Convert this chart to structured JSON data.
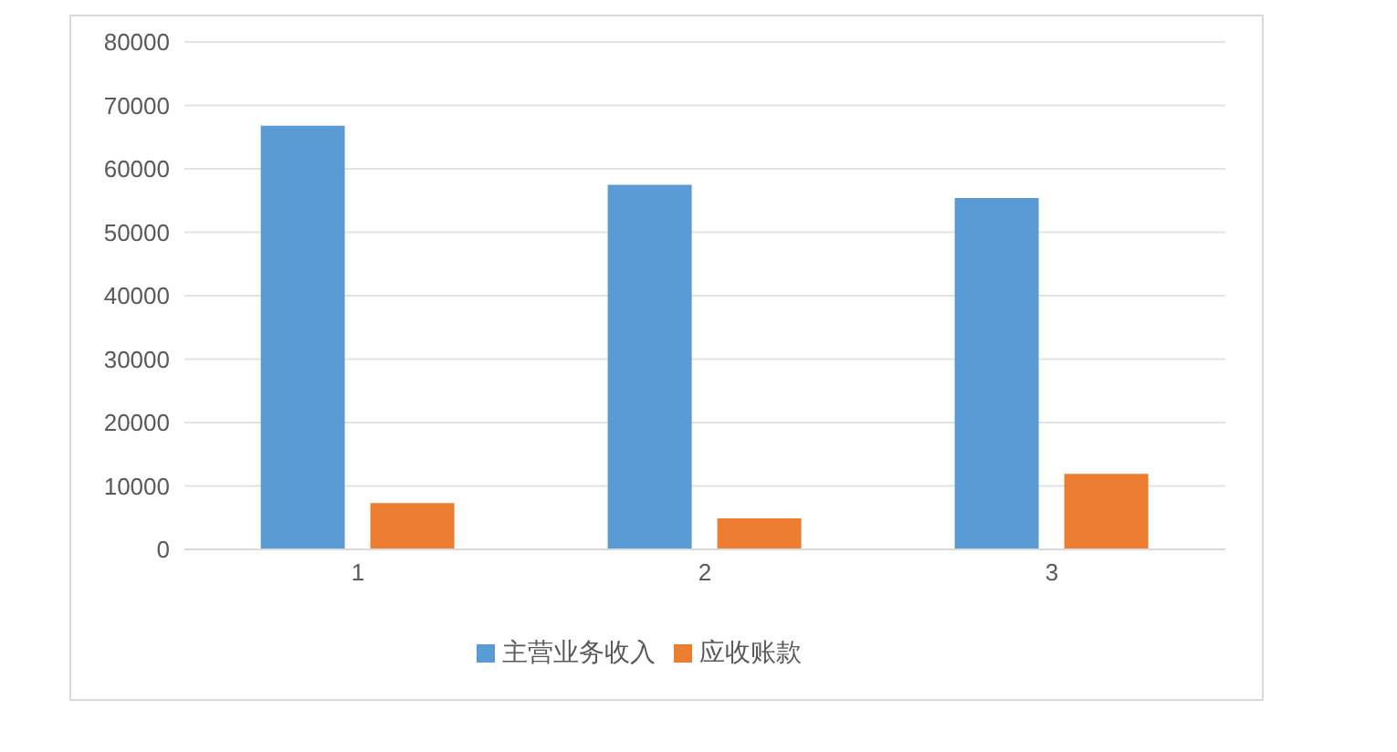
{
  "chart_data": {
    "type": "bar",
    "categories": [
      "1",
      "2",
      "3"
    ],
    "series": [
      {
        "name": "主营业务收入",
        "color": "#5b9bd5",
        "values": [
          66800,
          57500,
          55400
        ]
      },
      {
        "name": "应收账款",
        "color": "#ed7d31",
        "values": [
          7300,
          4900,
          11900
        ]
      }
    ],
    "ylim": [
      0,
      80000
    ],
    "yticks": [
      0,
      10000,
      20000,
      30000,
      40000,
      50000,
      60000,
      70000,
      80000
    ],
    "grid": "y",
    "legend": "bottom"
  }
}
